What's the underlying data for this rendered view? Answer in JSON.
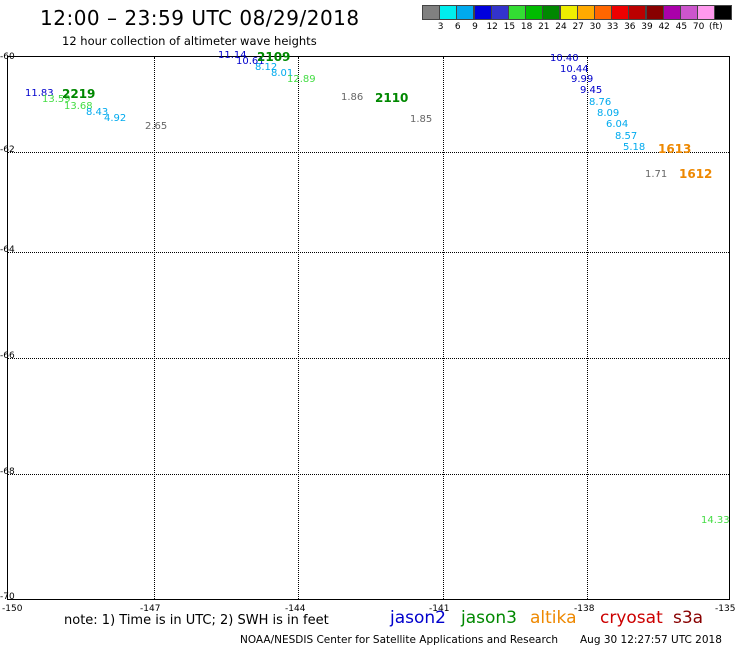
{
  "header": {
    "title": "12:00 – 23:59 UTC 08/29/2018",
    "subtitle": "12 hour collection of altimeter wave heights"
  },
  "legend": {
    "colors": [
      "#808080",
      "#00eeee",
      "#00aaee",
      "#0000dd",
      "#3333cc",
      "#33dd33",
      "#00bb00",
      "#008800",
      "#eeee00",
      "#ffaa00",
      "#ff6600",
      "#ee0000",
      "#bb0000",
      "#880000",
      "#aa00aa",
      "#cc55cc",
      "#ff99ee",
      "#000000"
    ],
    "labels": [
      "3",
      "6",
      "9",
      "12",
      "15",
      "18",
      "21",
      "24",
      "27",
      "30",
      "33",
      "36",
      "39",
      "42",
      "45",
      "70",
      "(ft)"
    ]
  },
  "axes": {
    "lat_labels": [
      "-60",
      "-62",
      "-64",
      "-66",
      "-68",
      "-70"
    ],
    "lon_labels": [
      "-150",
      "-147",
      "-144",
      "-141",
      "-138",
      "-135"
    ]
  },
  "passes": {
    "p2219": "2219",
    "p2109": "2109",
    "p2110": "2110",
    "p1613": "1613",
    "p1612": "1612"
  },
  "observations": {
    "o1": "11.83",
    "o2": "13.59",
    "o3": "13.68",
    "o4": "8.43",
    "o5": "4.92",
    "o6": "2.65",
    "o7": "11.14",
    "o8": "10.61",
    "o9": "8.12",
    "o10": "8.01",
    "o11": "12.89",
    "o12": "1.86",
    "o13": "1.85",
    "o14": "10.40",
    "o15": "10.44",
    "o16": "9.99",
    "o17": "9.45",
    "o18": "8.76",
    "o19": "8.09",
    "o20": "6.04",
    "o21": "8.57",
    "o22": "5.18",
    "o23": "1.71",
    "o24": "14.33"
  },
  "footer": {
    "note": "note: 1) Time is in UTC; 2) SWH is in feet",
    "satellites": {
      "jason2": "jason2",
      "jason3": "jason3",
      "altika": "altika",
      "cryosat": "cryosat",
      "s3a": "s3a"
    },
    "credit": "NOAA/NESDIS Center for Satellite Applications and Research",
    "timestamp": "Aug 30 12:27:57 UTC 2018"
  },
  "colors": {
    "jason2": "#0000cc",
    "jason3": "#008800",
    "altika": "#ee8800",
    "cryosat": "#cc0000",
    "s3a": "#880000",
    "gray": "#666666",
    "cyan": "#00aaee",
    "lightgreen": "#44dd44"
  }
}
